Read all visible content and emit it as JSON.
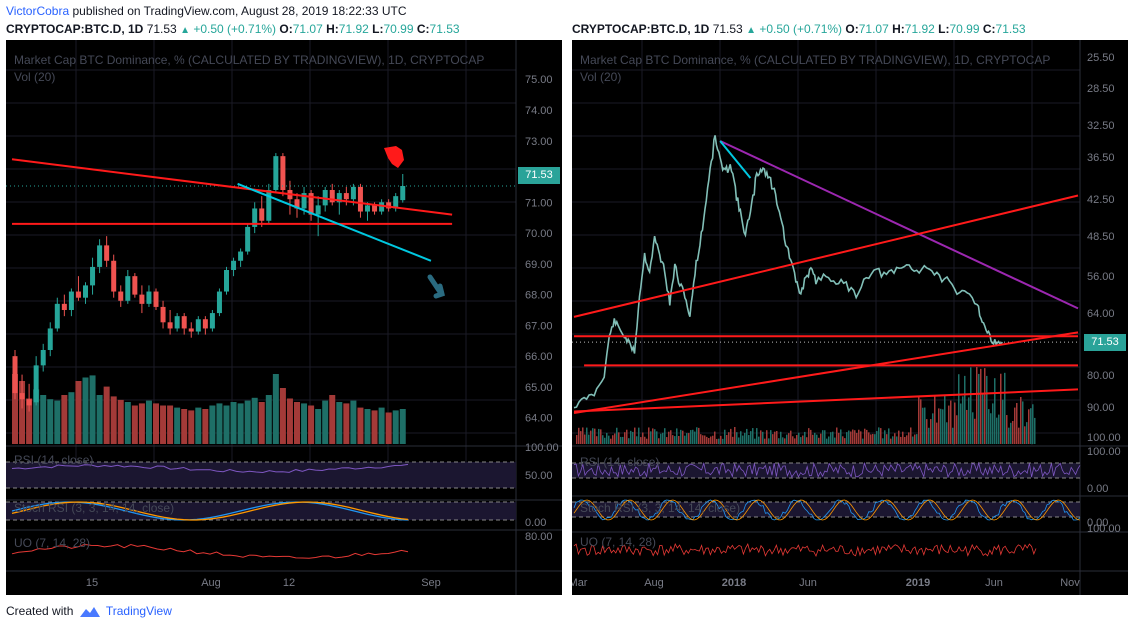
{
  "topline": {
    "user": "VictorCobra",
    "text": "published on TradingView.com, August 28, 2019 18:22:33 UTC"
  },
  "header": {
    "symbol": "CRYPTOCAP:BTC.D, 1D",
    "last": "71.53",
    "change": "+0.50 (+0.71%)",
    "o_label": "O:",
    "o": "71.07",
    "h_label": "H:",
    "h": "71.92",
    "l_label": "L:",
    "l": "70.99",
    "c_label": "C:",
    "c": "71.53"
  },
  "footer": {
    "created_with": "Created with",
    "brand": "TradingView"
  },
  "colors": {
    "up": "#26a69a",
    "down": "#ef5350",
    "trend_red": "#ff1a1a",
    "trend_cyan": "#00c8e0",
    "trend_purple": "#9c27b0",
    "rsi": "#7e57c2",
    "stoch_k": "#2196f3",
    "stoch_d": "#ff9800",
    "uo": "#e53935"
  },
  "chart_data": [
    {
      "type": "candlestick",
      "title": "Market Cap BTC Dominance, % (CALCULATED BY TRADINGVIEW), 1D, CRYPTOCAP",
      "subtitle": "Vol (20)",
      "last_price_label": "71.53",
      "x_ticks": [
        "15",
        "Aug",
        "12",
        "Sep"
      ],
      "y_ticks": [
        "75.00",
        "74.00",
        "73.00",
        "72.00",
        "71.00",
        "70.00",
        "69.00",
        "68.00",
        "67.00",
        "66.00",
        "65.00",
        "64.00"
      ],
      "ylim": [
        63.6,
        75.3
      ],
      "ohlc": [
        [
          66.0,
          66.2,
          64.6,
          64.8
        ],
        [
          64.8,
          65.4,
          64.3,
          64.6
        ],
        [
          64.6,
          65.1,
          64.2,
          64.4
        ],
        [
          64.5,
          66.0,
          64.4,
          65.7
        ],
        [
          65.7,
          66.4,
          65.5,
          66.2
        ],
        [
          66.2,
          67.1,
          66.0,
          66.9
        ],
        [
          66.9,
          67.9,
          66.8,
          67.7
        ],
        [
          67.7,
          68.0,
          67.3,
          67.5
        ],
        [
          67.5,
          68.2,
          67.3,
          68.1
        ],
        [
          68.1,
          68.6,
          67.8,
          67.9
        ],
        [
          67.9,
          68.4,
          67.7,
          68.3
        ],
        [
          68.3,
          69.2,
          68.0,
          68.9
        ],
        [
          68.9,
          69.8,
          68.7,
          69.6
        ],
        [
          69.6,
          69.9,
          68.9,
          69.1
        ],
        [
          69.1,
          69.3,
          67.9,
          68.1
        ],
        [
          68.1,
          68.3,
          67.6,
          67.8
        ],
        [
          67.8,
          68.8,
          67.7,
          68.6
        ],
        [
          68.6,
          68.7,
          67.9,
          68.0
        ],
        [
          68.0,
          68.3,
          67.4,
          67.7
        ],
        [
          67.7,
          68.3,
          67.6,
          68.1
        ],
        [
          68.1,
          68.2,
          67.5,
          67.6
        ],
        [
          67.6,
          67.8,
          66.9,
          67.1
        ],
        [
          67.1,
          67.5,
          66.7,
          66.9
        ],
        [
          66.9,
          67.4,
          66.8,
          67.3
        ],
        [
          67.3,
          67.4,
          66.7,
          66.9
        ],
        [
          66.9,
          67.1,
          66.6,
          66.8
        ],
        [
          66.8,
          67.3,
          66.7,
          67.2
        ],
        [
          67.2,
          67.3,
          66.7,
          66.9
        ],
        [
          66.9,
          67.5,
          66.8,
          67.4
        ],
        [
          67.4,
          68.2,
          67.3,
          68.1
        ],
        [
          68.1,
          68.9,
          68.0,
          68.8
        ],
        [
          68.8,
          69.2,
          68.6,
          69.1
        ],
        [
          69.1,
          69.5,
          68.9,
          69.4
        ],
        [
          69.4,
          70.3,
          69.3,
          70.2
        ],
        [
          70.2,
          71.0,
          70.0,
          70.8
        ],
        [
          70.8,
          71.2,
          70.2,
          70.4
        ],
        [
          70.4,
          71.6,
          70.3,
          71.4
        ],
        [
          71.4,
          72.6,
          71.3,
          72.5
        ],
        [
          72.5,
          72.6,
          71.2,
          71.4
        ],
        [
          71.4,
          71.7,
          70.6,
          71.1
        ],
        [
          71.1,
          71.3,
          70.5,
          70.8
        ],
        [
          70.8,
          71.5,
          70.6,
          71.3
        ],
        [
          71.3,
          71.4,
          70.4,
          70.6
        ],
        [
          70.6,
          71.2,
          69.9,
          70.9
        ],
        [
          70.9,
          71.5,
          70.7,
          71.4
        ],
        [
          71.4,
          71.6,
          70.9,
          71.0
        ],
        [
          71.0,
          71.4,
          70.6,
          71.3
        ],
        [
          71.3,
          71.5,
          70.9,
          71.1
        ],
        [
          71.1,
          71.6,
          70.9,
          71.5
        ],
        [
          71.5,
          71.6,
          70.5,
          70.7
        ],
        [
          70.7,
          71.0,
          70.4,
          70.9
        ],
        [
          70.9,
          71.0,
          70.6,
          70.7
        ],
        [
          70.7,
          71.1,
          70.6,
          71.0
        ],
        [
          71.0,
          71.1,
          70.7,
          70.8
        ],
        [
          70.8,
          71.3,
          70.7,
          71.2
        ],
        [
          71.07,
          71.92,
          70.99,
          71.53
        ]
      ],
      "volume": [
        1.0,
        0.9,
        0.65,
        0.78,
        0.7,
        0.64,
        0.62,
        0.7,
        0.74,
        0.9,
        0.95,
        0.98,
        0.7,
        0.82,
        0.68,
        0.63,
        0.6,
        0.55,
        0.58,
        0.62,
        0.58,
        0.55,
        0.55,
        0.52,
        0.5,
        0.48,
        0.52,
        0.5,
        0.55,
        0.58,
        0.55,
        0.6,
        0.58,
        0.62,
        0.66,
        0.6,
        0.7,
        1.0,
        0.8,
        0.65,
        0.6,
        0.58,
        0.55,
        0.5,
        0.62,
        0.7,
        0.6,
        0.58,
        0.62,
        0.52,
        0.5,
        0.48,
        0.52,
        0.45,
        0.48,
        0.5
      ],
      "trendlines": [
        {
          "color": "red",
          "points": [
            [
              0,
              72.4
            ],
            [
              62,
              70.6
            ]
          ]
        },
        {
          "color": "red",
          "points": [
            [
              0,
              70.3
            ],
            [
              62,
              70.3
            ]
          ]
        },
        {
          "color": "cyan",
          "points": [
            [
              32,
              71.6
            ],
            [
              59,
              69.1
            ]
          ]
        }
      ],
      "indicators": {
        "rsi": {
          "label": "RSI (14, close)",
          "ticks": [
            "100.00",
            "50.00"
          ],
          "bands": [
            70,
            30
          ]
        },
        "stoch_rsi": {
          "label": "Stoch RSI (3, 3, 14, 14, close)",
          "ticks": [
            "0.00"
          ],
          "bands": [
            80,
            20
          ]
        },
        "uo": {
          "label": "UO (7, 14, 28)",
          "ticks": [
            "80.00"
          ]
        }
      }
    },
    {
      "type": "line",
      "title": "Market Cap BTC Dominance, % (CALCULATED BY TRADINGVIEW), 1D, CRYPTOCAP",
      "subtitle": "Vol (20)",
      "last_price_label": "71.53",
      "x_ticks": [
        "Mar",
        "Aug",
        "2018",
        "Jun",
        "2019",
        "Jun",
        "Nov"
      ],
      "y_ticks": [
        "25.50",
        "28.50",
        "32.50",
        "36.50",
        "42.50",
        "48.50",
        "56.00",
        "64.00",
        "80.00",
        "90.00",
        "100.00"
      ],
      "y_scale": "inverted",
      "x_domain": [
        0,
        100
      ],
      "series": [
        {
          "values": [
            [
              0,
              90.0
            ],
            [
              2,
              87.5
            ],
            [
              4,
              86.0
            ],
            [
              6,
              80.0
            ],
            [
              7,
              70.0
            ],
            [
              8,
              66.0
            ],
            [
              9,
              68.0
            ],
            [
              10,
              70.0
            ],
            [
              11,
              72.0
            ],
            [
              12,
              74.0
            ],
            [
              13,
              60.0
            ],
            [
              14,
              52.0
            ],
            [
              15,
              55.0
            ],
            [
              16,
              49.0
            ],
            [
              17,
              52.0
            ],
            [
              18,
              55.0
            ],
            [
              19,
              62.0
            ],
            [
              20,
              54.0
            ],
            [
              21,
              58.0
            ],
            [
              22,
              60.0
            ],
            [
              23,
              65.0
            ],
            [
              24,
              55.0
            ],
            [
              25,
              50.0
            ],
            [
              26,
              44.0
            ],
            [
              27,
              38.0
            ],
            [
              28,
              34.0
            ],
            [
              29,
              37.0
            ],
            [
              30,
              39.0
            ],
            [
              31,
              37.0
            ],
            [
              32,
              41.0
            ],
            [
              33,
              45.0
            ],
            [
              34,
              48.0
            ],
            [
              35,
              45.0
            ],
            [
              36,
              40.0
            ],
            [
              37,
              38.0
            ],
            [
              38,
              38.5
            ],
            [
              39,
              40.0
            ],
            [
              40,
              42.0
            ],
            [
              41,
              45.0
            ],
            [
              42,
              50.0
            ],
            [
              43,
              53.0
            ],
            [
              44,
              57.0
            ],
            [
              45,
              60.0
            ],
            [
              46,
              56.0
            ],
            [
              47,
              55.0
            ],
            [
              48,
              57.0
            ],
            [
              50,
              56.0
            ],
            [
              52,
              57.0
            ],
            [
              54,
              58.0
            ],
            [
              56,
              60.0
            ],
            [
              58,
              56.0
            ],
            [
              60,
              55.0
            ],
            [
              62,
              56.0
            ],
            [
              64,
              55.0
            ],
            [
              66,
              54.0
            ],
            [
              68,
              55.0
            ],
            [
              70,
              54.0
            ],
            [
              72,
              56.0
            ],
            [
              74,
              57.0
            ],
            [
              76,
              60.0
            ],
            [
              78,
              59.0
            ],
            [
              80,
              62.0
            ],
            [
              81,
              66.0
            ],
            [
              82,
              69.0
            ],
            [
              83,
              71.0
            ],
            [
              84,
              72.0
            ],
            [
              85,
              71.5
            ]
          ]
        }
      ],
      "trendlines": [
        {
          "color": "purple",
          "points": [
            [
              29,
              34.5
            ],
            [
              100,
              63.0
            ]
          ]
        },
        {
          "color": "cyan",
          "points": [
            [
              29,
              34.5
            ],
            [
              35,
              39.5
            ]
          ]
        },
        {
          "color": "red",
          "points": [
            [
              0,
              65.0
            ],
            [
              100,
              42.0
            ]
          ]
        },
        {
          "color": "red",
          "points": [
            [
              0,
              92.0
            ],
            [
              100,
              69.0
            ]
          ]
        },
        {
          "color": "red",
          "points": [
            [
              0,
              91.5
            ],
            [
              100,
              84.5
            ]
          ]
        },
        {
          "color": "red",
          "points": [
            [
              0,
              70.0
            ],
            [
              100,
              70.0
            ]
          ]
        },
        {
          "color": "red",
          "points": [
            [
              2,
              77.5
            ],
            [
              100,
              77.5
            ]
          ]
        }
      ],
      "indicators": {
        "rsi": {
          "label": "RSI (14, close)",
          "ticks": [
            "100.00",
            "0.00"
          ],
          "bands": [
            70,
            30
          ]
        },
        "stoch_rsi": {
          "label": "Stoch RSI (3, 3, 14, 14, close)",
          "ticks": [
            "0.00"
          ],
          "bands": [
            80,
            20
          ]
        },
        "uo": {
          "label": "UO (7, 14, 28)",
          "ticks": [
            "100.00"
          ]
        }
      }
    }
  ]
}
